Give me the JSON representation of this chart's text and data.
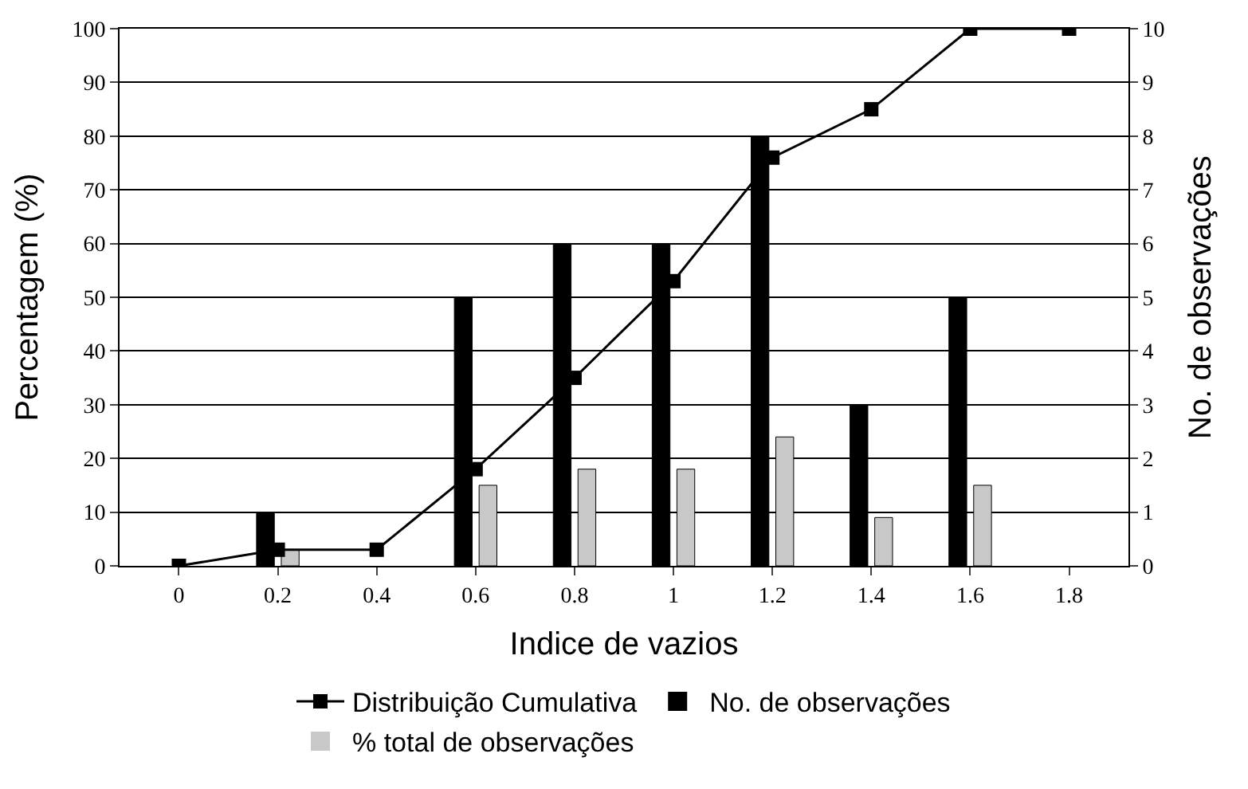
{
  "chart_data": {
    "type": "bar",
    "xlabel": "Indice de vazios",
    "ylabel": "Percentagem (%)",
    "y2label": "No. de observações",
    "categories": [
      "0",
      "0.2",
      "0.4",
      "0.6",
      "0.8",
      "1",
      "1.2",
      "1.4",
      "1.6",
      "1.8"
    ],
    "series": [
      {
        "name": "Distribuição Cumulativa",
        "type": "line",
        "color": "#000000",
        "marker": "square",
        "values": [
          0,
          3,
          3,
          18,
          35,
          53,
          76,
          85,
          100,
          100
        ]
      },
      {
        "name": "No. de observações",
        "axis": "y2",
        "color": "#000000",
        "values": [
          0,
          1,
          0,
          5,
          6,
          6,
          8,
          3,
          5,
          0
        ]
      },
      {
        "name": "% total de observações",
        "color": "#c8c8c8",
        "values": [
          0,
          3,
          0,
          15,
          18,
          18,
          24,
          9,
          15,
          0
        ]
      }
    ],
    "ylim": [
      0,
      100
    ],
    "yticks": [
      0,
      10,
      20,
      30,
      40,
      50,
      60,
      70,
      80,
      90,
      100
    ],
    "y2lim": [
      0,
      10
    ],
    "y2ticks": [
      0,
      1,
      2,
      3,
      4,
      5,
      6,
      7,
      8,
      9,
      10
    ],
    "grid": "y",
    "legend": "bottom"
  }
}
